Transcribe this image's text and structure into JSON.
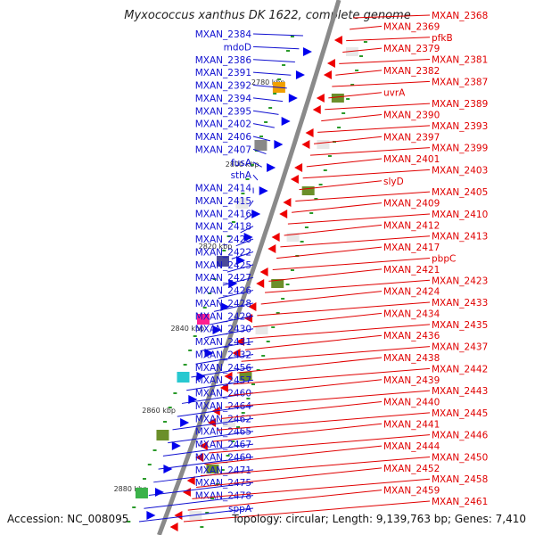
{
  "header": {
    "title": "Myxococcus xanthus DK 1622, complete genome"
  },
  "footer": {
    "accession": "Accession: NC_008095",
    "summary": "Topology: circular; Length: 9,139,763 bp; Genes: 7,410"
  },
  "colors": {
    "left_labels": "#1010d0",
    "right_labels": "#e00000",
    "backbone": "#8a8a8a",
    "forward_genes": "#0000ee",
    "reverse_genes": "#ee0000",
    "tick": "#2a9a2a"
  },
  "scale_labels": [
    "2780 kbp",
    "2800 kbp",
    "2820 kbp",
    "2840 kbp",
    "2860 kbp",
    "2880 kbp"
  ],
  "left_labels": [
    "MXAN_2384",
    "mdoD",
    "MXAN_2386",
    "MXAN_2391",
    "MXAN_2392",
    "MXAN_2394",
    "MXAN_2395",
    "MXAN_2402",
    "MXAN_2406",
    "MXAN_2407",
    "fusA",
    "sthA",
    "MXAN_2414",
    "MXAN_2415",
    "MXAN_2416",
    "MXAN_2418",
    "MXAN_2420",
    "MXAN_2422",
    "MXAN_2425",
    "MXAN_2427",
    "MXAN_2426",
    "MXAN_2428",
    "MXAN_2429",
    "MXAN_2430",
    "MXAN_2431",
    "MXAN_2432",
    "MXAN_2456",
    "MXAN_2457",
    "MXAN_2460",
    "MXAN_2464",
    "MXAN_2462",
    "MXAN_2465",
    "MXAN_2467",
    "MXAN_2469",
    "MXAN_2471",
    "MXAN_2475",
    "MXAN_2478",
    "sppA"
  ],
  "right_labels": [
    "MXAN_2368",
    "MXAN_2369",
    "pfkB",
    "MXAN_2379",
    "MXAN_2381",
    "MXAN_2382",
    "MXAN_2387",
    "uvrA",
    "MXAN_2389",
    "MXAN_2390",
    "MXAN_2393",
    "MXAN_2397",
    "MXAN_2399",
    "MXAN_2401",
    "MXAN_2403",
    "slyD",
    "MXAN_2405",
    "MXAN_2409",
    "MXAN_2410",
    "MXAN_2412",
    "MXAN_2413",
    "MXAN_2417",
    "pbpC",
    "MXAN_2421",
    "MXAN_2423",
    "MXAN_2424",
    "MXAN_2433",
    "MXAN_2434",
    "MXAN_2435",
    "MXAN_2436",
    "MXAN_2437",
    "MXAN_2438",
    "MXAN_2442",
    "MXAN_2439",
    "MXAN_2443",
    "MXAN_2440",
    "MXAN_2445",
    "MXAN_2441",
    "MXAN_2446",
    "MXAN_2444",
    "MXAN_2450",
    "MXAN_2452",
    "MXAN_2458",
    "MXAN_2459",
    "MXAN_2461"
  ]
}
